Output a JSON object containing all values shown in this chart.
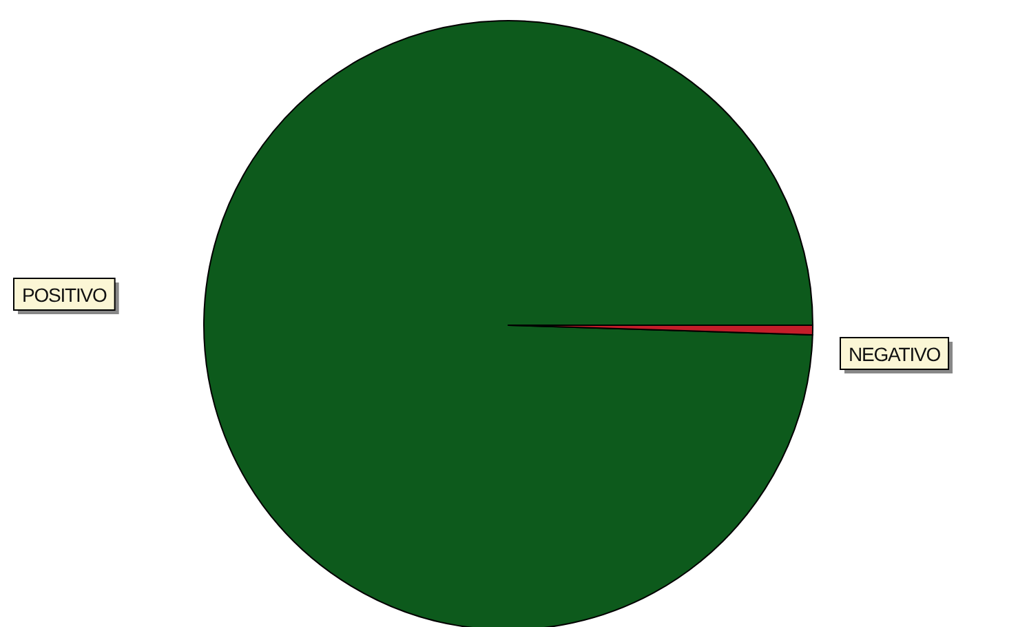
{
  "chart_data": {
    "type": "pie",
    "categories": [
      "POSITIVO",
      "NEGATIVO"
    ],
    "values": [
      99.5,
      0.5
    ],
    "colors": [
      "#0d5a1c",
      "#c41e2a"
    ],
    "legend": false
  }
}
